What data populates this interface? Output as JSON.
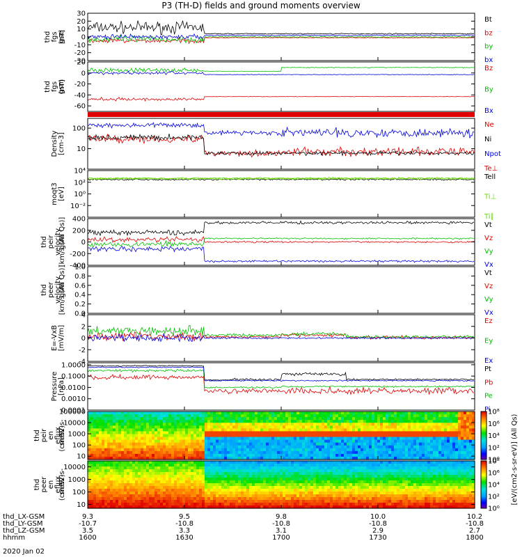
{
  "title": "P3 (TH-D) fields and ground moments overview",
  "date_label": "2020 Jan 02",
  "colors": {
    "black": "#000000",
    "red": "#e00000",
    "green": "#00c000",
    "blue": "#0000e0",
    "lime": "#66dd00"
  },
  "chart_data": [
    {
      "type": "line",
      "id": "fgs-gse",
      "ylabel": [
        "thd",
        "fgs",
        "gse",
        "[nT]"
      ],
      "ylim": [
        -30,
        30
      ],
      "yticks": [
        -30,
        -20,
        -10,
        0,
        10,
        20,
        30
      ],
      "series": [
        {
          "name": "Bt",
          "color": "black",
          "segments": [
            [
              1600,
              12,
              5
            ],
            [
              1636,
              4,
              0.4
            ],
            [
              1770,
              6,
              3
            ],
            [
              1800,
              8,
              6
            ]
          ]
        },
        {
          "name": "bz",
          "color": "red",
          "segments": [
            [
              1600,
              -5,
              2
            ],
            [
              1636,
              -1,
              0.3
            ],
            [
              1770,
              -1,
              4
            ],
            [
              1800,
              -1,
              6
            ]
          ]
        },
        {
          "name": "by",
          "color": "green",
          "segments": [
            [
              1600,
              -3,
              3
            ],
            [
              1636,
              0,
              0.5
            ],
            [
              1770,
              0,
              4
            ],
            [
              1800,
              0,
              6
            ]
          ]
        },
        {
          "name": "bx",
          "color": "blue",
          "segments": [
            [
              1600,
              0,
              2
            ],
            [
              1636,
              2,
              0.5
            ],
            [
              1770,
              2,
              3
            ],
            [
              1800,
              2,
              5
            ]
          ]
        }
      ]
    },
    {
      "type": "line",
      "id": "fgs-gsm",
      "ylabel": [
        "thd",
        "fgs",
        "gsm",
        "[nT]"
      ],
      "ylim": [
        -70,
        20
      ],
      "yticks": [
        -60,
        -40,
        -20,
        0,
        20
      ],
      "series": [
        {
          "name": "Bz",
          "color": "red",
          "segments": [
            [
              1600,
              -48,
              2
            ],
            [
              1636,
              -43,
              0.3
            ],
            [
              1770,
              -43,
              3
            ],
            [
              1800,
              -35,
              6
            ]
          ]
        },
        {
          "name": "By",
          "color": "green",
          "segments": [
            [
              1600,
              5,
              3
            ],
            [
              1636,
              3,
              0.4
            ],
            [
              1700,
              10,
              0.5
            ],
            [
              1770,
              15,
              2
            ],
            [
              1800,
              12,
              5
            ]
          ]
        },
        {
          "name": "Bx",
          "color": "blue",
          "segments": [
            [
              1600,
              0,
              2
            ],
            [
              1636,
              -3,
              0.4
            ],
            [
              1770,
              -3,
              3
            ],
            [
              1800,
              0,
              6
            ]
          ]
        }
      ]
    },
    {
      "type": "line",
      "id": "density",
      "log": true,
      "ylabel": [
        "Density",
        "[cm-3]"
      ],
      "ylim": [
        1,
        300
      ],
      "yticks": [
        10,
        100
      ],
      "ytick_labels": [
        "10",
        "100"
      ],
      "series": [
        {
          "name": "Ne",
          "color": "red",
          "segments": [
            [
              1600,
              30,
              0.15
            ],
            [
              1636,
              6,
              0.1
            ],
            [
              1700,
              7,
              0.15
            ],
            [
              1770,
              6,
              0.1
            ],
            [
              1800,
              5,
              0.3
            ]
          ]
        },
        {
          "name": "Ni",
          "color": "black",
          "segments": [
            [
              1600,
              35,
              0.1
            ],
            [
              1636,
              6,
              0.06
            ],
            [
              1770,
              6,
              0.06
            ],
            [
              1800,
              6,
              0.2
            ]
          ]
        },
        {
          "name": "Npot",
          "color": "blue",
          "segments": [
            [
              1600,
              140,
              0.08
            ],
            [
              1636,
              60,
              0.08
            ],
            [
              1700,
              60,
              0.15
            ],
            [
              1770,
              55,
              0.1
            ],
            [
              1800,
              40,
              0.4
            ]
          ]
        },
        {
          "name": "Te⊥",
          "color": "red",
          "segments": []
        }
      ]
    },
    {
      "type": "line",
      "id": "temperature",
      "log": true,
      "ylabel": [
        "moqt3",
        "[eV]"
      ],
      "ylim": [
        0.0001,
        10000
      ],
      "yticks": [
        0.01,
        1,
        100,
        10000
      ],
      "ytick_labels": [
        "10⁻²",
        "10⁰",
        "10²",
        "10⁴"
      ],
      "series": [
        {
          "name": "Tell",
          "color": "black",
          "segments": [
            [
              1600,
              300,
              0.1
            ],
            [
              1800,
              300,
              0.1
            ]
          ]
        },
        {
          "name": "Ti⊥",
          "color": "lime",
          "segments": [
            [
              1600,
              500,
              0.1
            ],
            [
              1800,
              700,
              0.1
            ]
          ]
        },
        {
          "name": "Ti∥",
          "color": "lime",
          "segments": [
            [
              1600,
              400,
              0.1
            ],
            [
              1800,
              600,
              0.1
            ]
          ]
        }
      ]
    },
    {
      "type": "line",
      "id": "peir-velocity",
      "ylabel": [
        "thd",
        "peir",
        "velocity",
        "gsm",
        "[km/s (All Qs)]"
      ],
      "ylim": [
        -400,
        400
      ],
      "yticks": [
        -400,
        -200,
        0,
        200,
        400
      ],
      "series": [
        {
          "name": "Vt",
          "color": "black",
          "segments": [
            [
              1600,
              160,
              30
            ],
            [
              1636,
              330,
              15
            ],
            [
              1770,
              340,
              20
            ],
            [
              1800,
              300,
              60
            ]
          ]
        },
        {
          "name": "Vz",
          "color": "red",
          "segments": [
            [
              1600,
              40,
              30
            ],
            [
              1636,
              0,
              10
            ],
            [
              1770,
              0,
              25
            ],
            [
              1800,
              0,
              60
            ]
          ]
        },
        {
          "name": "Vy",
          "color": "green",
          "segments": [
            [
              1600,
              -40,
              30
            ],
            [
              1636,
              60,
              10
            ],
            [
              1770,
              60,
              15
            ],
            [
              1800,
              40,
              60
            ]
          ]
        },
        {
          "name": "Vx",
          "color": "blue",
          "segments": [
            [
              1600,
              -120,
              30
            ],
            [
              1636,
              -330,
              12
            ],
            [
              1770,
              -330,
              15
            ],
            [
              1800,
              -280,
              60
            ]
          ]
        }
      ]
    },
    {
      "type": "line",
      "id": "peer-velocity",
      "ylabel": [
        "thd",
        "peer",
        "velocity",
        "gsm",
        "[km/s (All Qs)]"
      ],
      "ylim": [
        0.0,
        1.0
      ],
      "yticks": [
        0.0,
        0.2,
        0.4,
        0.6,
        0.8,
        1.0
      ],
      "ytick_labels": [
        "0.0",
        "0.2",
        "0.4",
        "0.6",
        "0.8",
        "1.0"
      ],
      "series": [
        {
          "name": "Vt",
          "color": "black",
          "segments": []
        },
        {
          "name": "Vz",
          "color": "red",
          "segments": []
        },
        {
          "name": "Vy",
          "color": "green",
          "segments": []
        },
        {
          "name": "Vx",
          "color": "blue",
          "segments": []
        }
      ]
    },
    {
      "type": "line",
      "id": "efield",
      "ylabel": [
        "E=-VxB",
        "[mV/m]"
      ],
      "ylim": [
        -4,
        4
      ],
      "yticks": [
        -4,
        -2,
        0,
        2,
        4
      ],
      "series": [
        {
          "name": "Ez",
          "color": "red",
          "segments": [
            [
              1600,
              0.3,
              0.5
            ],
            [
              1636,
              0.2,
              0.15
            ],
            [
              1700,
              0.5,
              0.2
            ],
            [
              1720,
              0.1,
              0.2
            ],
            [
              1770,
              0.5,
              0.3
            ],
            [
              1800,
              0,
              1.2
            ]
          ]
        },
        {
          "name": "Ey",
          "color": "green",
          "segments": [
            [
              1600,
              1.3,
              0.5
            ],
            [
              1636,
              0.5,
              0.2
            ],
            [
              1700,
              0.7,
              0.2
            ],
            [
              1720,
              0.2,
              0.2
            ],
            [
              1770,
              0.9,
              0.3
            ],
            [
              1800,
              0.5,
              1.2
            ]
          ]
        },
        {
          "name": "Ex",
          "color": "blue",
          "segments": [
            [
              1600,
              0,
              0.4
            ],
            [
              1636,
              0,
              0.1
            ],
            [
              1770,
              0,
              0.2
            ],
            [
              1800,
              0,
              1.0
            ]
          ]
        }
      ]
    },
    {
      "type": "line",
      "id": "pressure",
      "log": true,
      "ylabel": [
        "Pressure",
        "[nPa]"
      ],
      "ylim": [
        0.0001,
        1.5
      ],
      "yticks": [
        0.0001,
        0.001,
        0.01,
        0.1,
        1.0
      ],
      "ytick_labels": [
        "0.0001",
        "0.0010",
        "0.0100",
        "0.1000",
        "1.0000"
      ],
      "series": [
        {
          "name": "Pt",
          "color": "black",
          "segments": [
            [
              1600,
              0.8,
              0.03
            ],
            [
              1636,
              0.045,
              0.03
            ],
            [
              1645,
              0.05,
              0.08
            ],
            [
              1700,
              0.15,
              0.1
            ],
            [
              1720,
              0.05,
              0.05
            ],
            [
              1770,
              0.08,
              0.1
            ],
            [
              1800,
              0.2,
              0.15
            ]
          ]
        },
        {
          "name": "Pb",
          "color": "red",
          "segments": [
            [
              1600,
              0.08,
              0.15
            ],
            [
              1636,
              0.005,
              0.15
            ],
            [
              1700,
              0.005,
              0.2
            ],
            [
              1770,
              0.01,
              0.15
            ],
            [
              1800,
              0.01,
              0.4
            ]
          ]
        },
        {
          "name": "Pe",
          "color": "green",
          "segments": [
            [
              1600,
              0.3,
              0.08
            ],
            [
              1636,
              0.01,
              0.05
            ],
            [
              1700,
              0.012,
              0.05
            ],
            [
              1770,
              0.025,
              0.08
            ],
            [
              1800,
              0.04,
              0.1
            ]
          ]
        },
        {
          "name": "Pi",
          "color": "blue",
          "segments": [
            [
              1600,
              0.6,
              0.03
            ],
            [
              1636,
              0.04,
              0.04
            ],
            [
              1770,
              0.07,
              0.05
            ],
            [
              1800,
              0.15,
              0.1
            ]
          ]
        }
      ]
    },
    {
      "type": "heatmap",
      "id": "peir-en-eflux",
      "log": true,
      "ylabel": [
        "thd",
        "peir",
        "en",
        "eflux",
        "eV",
        "(cm^2-s-",
        "sr-eV)"
      ],
      "ylim": [
        5,
        100000
      ],
      "yticks": [
        10,
        100,
        1000,
        10000,
        100000
      ],
      "ytick_labels": [
        "10",
        "100",
        "1000",
        "10000",
        "100000"
      ]
    },
    {
      "type": "heatmap",
      "id": "peer-en-eflux",
      "log": true,
      "ylabel": [
        "thd",
        "peer",
        "en",
        "eflux",
        "eV",
        "(cm^2-s-",
        "sr-eV)"
      ],
      "ylim": [
        5,
        30000
      ],
      "yticks": [
        10,
        100,
        1000,
        10000
      ],
      "ytick_labels": [
        "10",
        "100",
        "1000",
        "10000"
      ]
    }
  ],
  "colorbars": [
    {
      "id": "cbar-peir",
      "labels": [
        "10⁰",
        "10²",
        "10⁴",
        "10⁶",
        "10⁸"
      ]
    },
    {
      "id": "cbar-peer",
      "labels": [
        "10⁰",
        "10²",
        "10⁴",
        "10⁶",
        "10⁸"
      ]
    }
  ],
  "colorbar_unit": "[eV/(cm2-s-sr-eV)] (All Qs)",
  "x_axis": {
    "range_hhmm": [
      1600,
      1800
    ],
    "tick_hhmm": [
      1600,
      1630,
      1700,
      1730,
      1800
    ],
    "rows": [
      {
        "label": "thd_LX-GSM",
        "values": [
          "9.3",
          "9.5",
          "9.8",
          "10.0",
          "10.2"
        ]
      },
      {
        "label": "thd_LY-GSM",
        "values": [
          "-10.7",
          "-10.8",
          "-10.8",
          "-10.8",
          "-10.8"
        ]
      },
      {
        "label": "thd_LZ-GSM",
        "values": [
          "3.5",
          "3.3",
          "3.1",
          "2.9",
          "2.7"
        ]
      },
      {
        "label": "hhmm",
        "values": [
          "1600",
          "1630",
          "1700",
          "1730",
          "1800"
        ]
      }
    ]
  }
}
